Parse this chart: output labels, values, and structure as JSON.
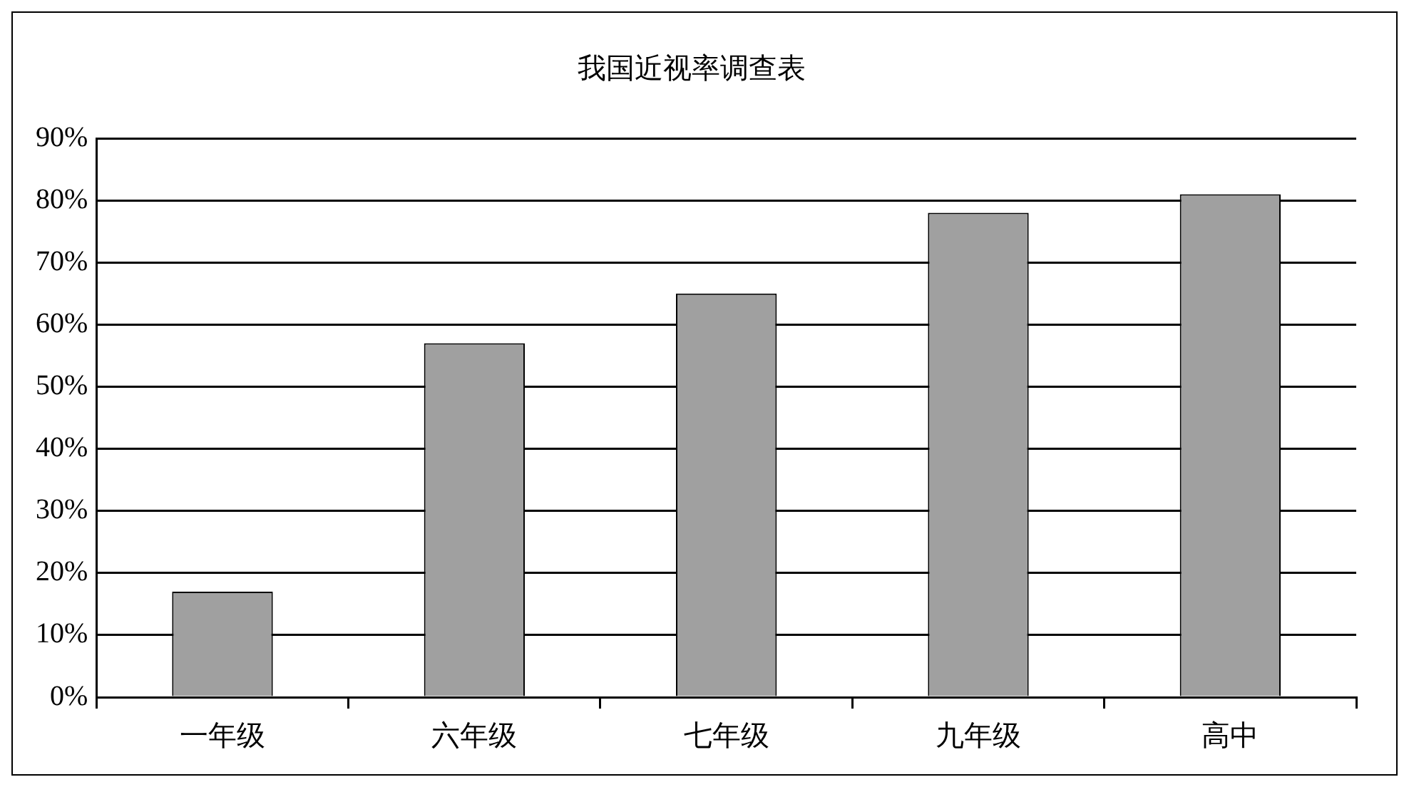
{
  "chart_data": {
    "type": "bar",
    "title": "我国近视率调查表",
    "categories": [
      "一年级",
      "六年级",
      "七年级",
      "九年级",
      "高中"
    ],
    "values": [
      17,
      57,
      65,
      78,
      81
    ],
    "color": "#a0a0a0",
    "ylim": [
      0,
      90
    ],
    "yticks": [
      {
        "value": 0,
        "label": "0%"
      },
      {
        "value": 10,
        "label": "10%"
      },
      {
        "value": 20,
        "label": "20%"
      },
      {
        "value": 30,
        "label": "30%"
      },
      {
        "value": 40,
        "label": "40%"
      },
      {
        "value": 50,
        "label": "50%"
      },
      {
        "value": 60,
        "label": "60%"
      },
      {
        "value": 70,
        "label": "70%"
      },
      {
        "value": 80,
        "label": "80%"
      },
      {
        "value": 90,
        "label": "90%"
      }
    ],
    "grid": "y",
    "legend": false
  }
}
